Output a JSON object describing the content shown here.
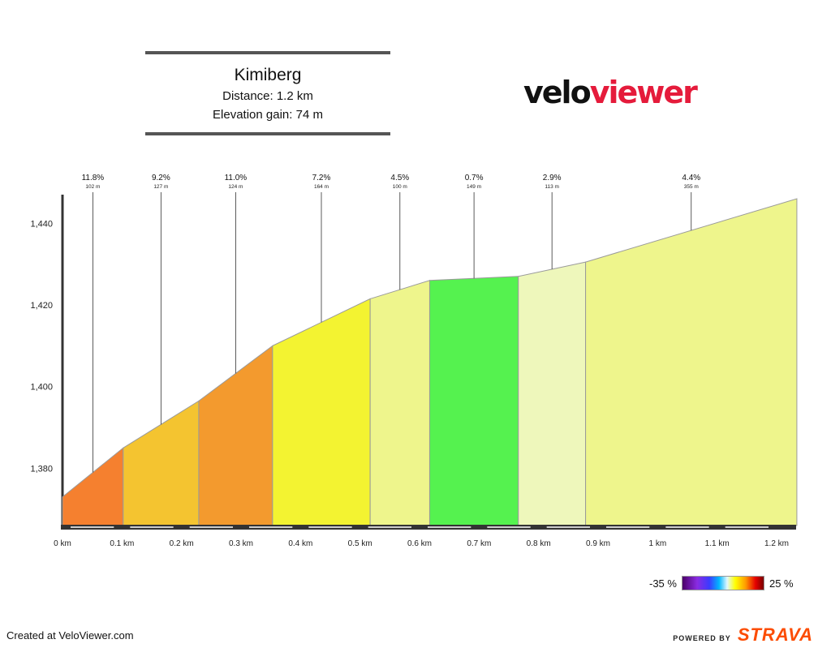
{
  "header": {
    "title": "Kimiberg",
    "distance": "Distance: 1.2 km",
    "elevation_gain": "Elevation gain: 74 m",
    "logo_part1": "velo",
    "logo_part2": "viewer"
  },
  "legend": {
    "min_label": "-35 %",
    "max_label": "25 %"
  },
  "footer": {
    "created": "Created at VeloViewer.com",
    "powered_by": "POWERED BY",
    "brand": "STRAVA"
  },
  "chart_data": {
    "type": "area",
    "xlabel": "",
    "ylabel": "",
    "x_unit": "km",
    "xlim": [
      0,
      1.23
    ],
    "ylim": [
      1366,
      1447
    ],
    "x_ticks": [
      "0 km",
      "0.1 km",
      "0.2 km",
      "0.3 km",
      "0.4 km",
      "0.5 km",
      "0.6 km",
      "0.7 km",
      "0.8 km",
      "0.9 km",
      "1 km",
      "1.1 km",
      "1.2 km"
    ],
    "x_tick_values": [
      0,
      0.1,
      0.2,
      0.3,
      0.4,
      0.5,
      0.6,
      0.7,
      0.8,
      0.9,
      1.0,
      1.1,
      1.2
    ],
    "y_ticks": [
      "1,380",
      "1,400",
      "1,420",
      "1,440"
    ],
    "y_tick_values": [
      1380,
      1400,
      1420,
      1440
    ],
    "segments": [
      {
        "grade": "11.8%",
        "length": "102 m",
        "x_start": 0.0,
        "x_end": 0.102,
        "elev_start": 1373.0,
        "elev_end": 1385.0,
        "color": "#f5802f"
      },
      {
        "grade": "9.2%",
        "length": "127 m",
        "x_start": 0.102,
        "x_end": 0.229,
        "elev_start": 1385.0,
        "elev_end": 1396.5,
        "color": "#f4c430"
      },
      {
        "grade": "11.0%",
        "length": "124 m",
        "x_start": 0.229,
        "x_end": 0.353,
        "elev_start": 1396.5,
        "elev_end": 1410.0,
        "color": "#f39a2e"
      },
      {
        "grade": "7.2%",
        "length": "164 m",
        "x_start": 0.353,
        "x_end": 0.517,
        "elev_start": 1410.0,
        "elev_end": 1421.5,
        "color": "#f3f331"
      },
      {
        "grade": "4.5%",
        "length": "100 m",
        "x_start": 0.517,
        "x_end": 0.617,
        "elev_start": 1421.5,
        "elev_end": 1426.0,
        "color": "#eef58c"
      },
      {
        "grade": "0.7%",
        "length": "149 m",
        "x_start": 0.617,
        "x_end": 0.766,
        "elev_start": 1426.0,
        "elev_end": 1427.0,
        "color": "#55f24f"
      },
      {
        "grade": "2.9%",
        "length": "113 m",
        "x_start": 0.766,
        "x_end": 0.879,
        "elev_start": 1427.0,
        "elev_end": 1430.5,
        "color": "#eef7bb"
      },
      {
        "grade": "4.4%",
        "length": "355 m",
        "x_start": 0.879,
        "x_end": 1.234,
        "elev_start": 1430.5,
        "elev_end": 1446.0,
        "color": "#eef58c"
      }
    ]
  }
}
